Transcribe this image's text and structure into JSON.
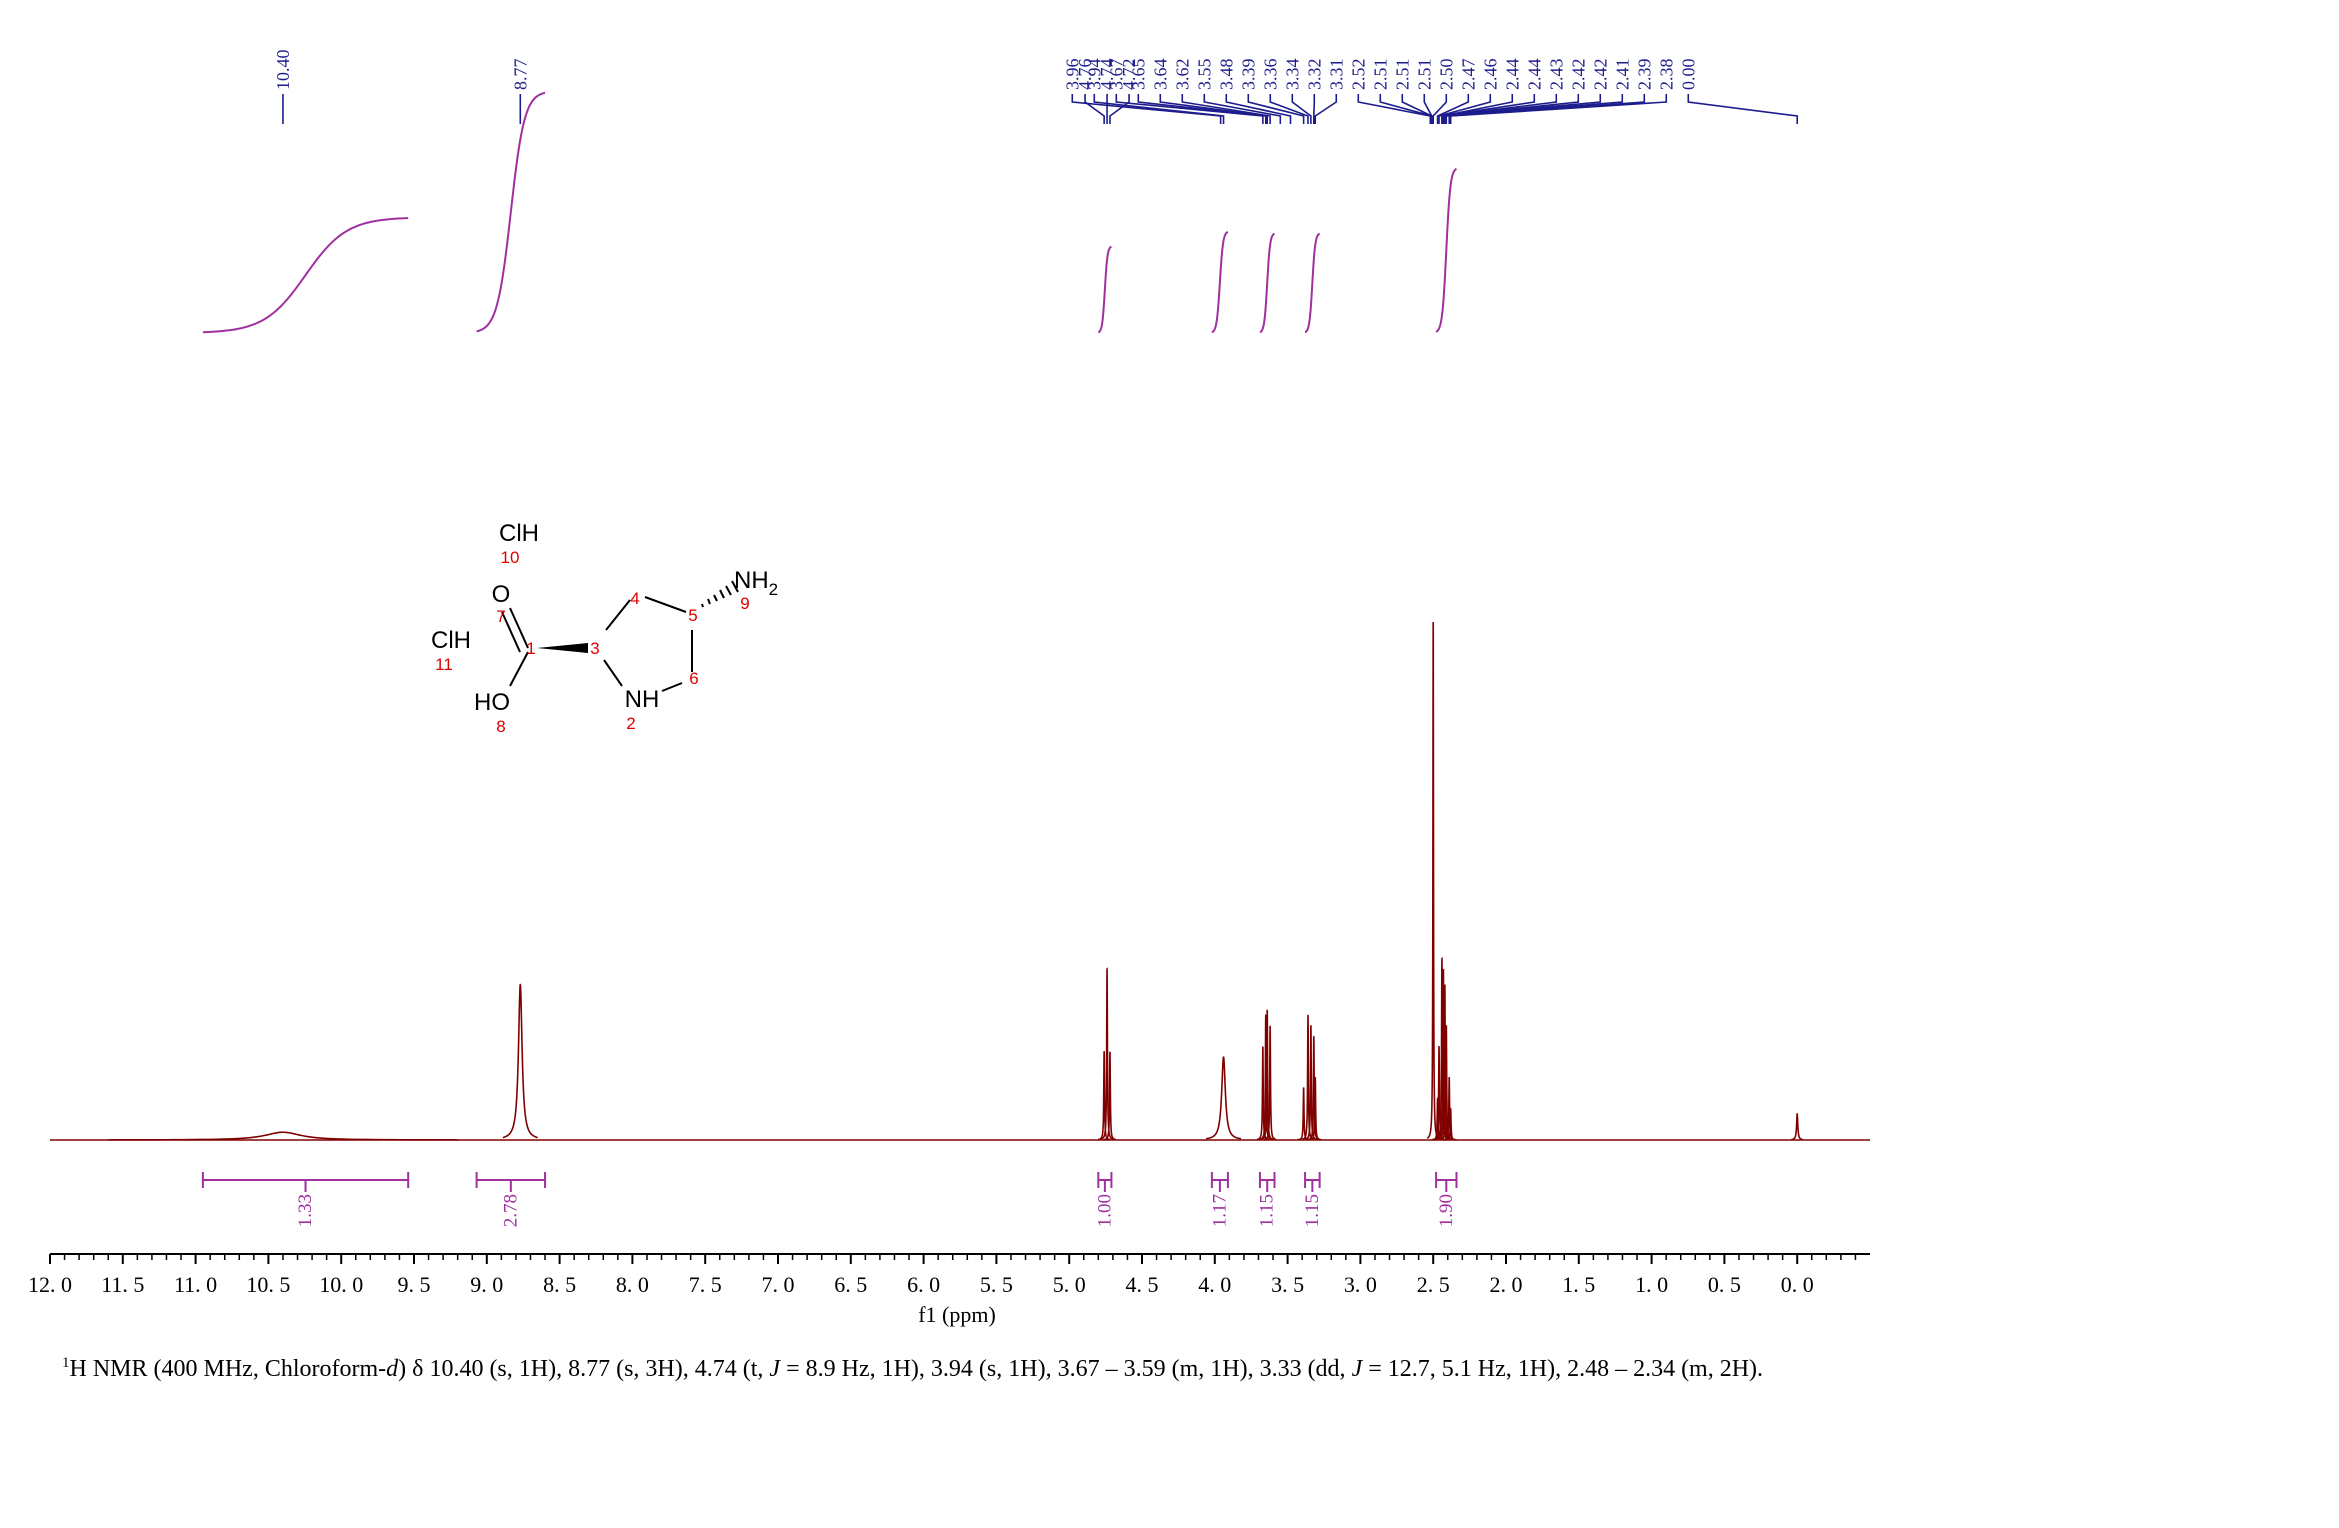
{
  "chart_data": {
    "type": "nmr",
    "x_label": "f1 (ppm)",
    "xlim": [
      12,
      -0.5
    ],
    "xticks": [
      {
        "value": 12,
        "label": "12. 0"
      },
      {
        "value": 11.5,
        "label": "11. 5"
      },
      {
        "value": 11,
        "label": "11. 0"
      },
      {
        "value": 10.5,
        "label": "10. 5"
      },
      {
        "value": 10,
        "label": "10. 0"
      },
      {
        "value": 9.5,
        "label": "9. 5"
      },
      {
        "value": 9,
        "label": "9. 0"
      },
      {
        "value": 8.5,
        "label": "8. 5"
      },
      {
        "value": 8,
        "label": "8. 0"
      },
      {
        "value": 7.5,
        "label": "7. 5"
      },
      {
        "value": 7,
        "label": "7. 0"
      },
      {
        "value": 6.5,
        "label": "6. 5"
      },
      {
        "value": 6,
        "label": "6. 0"
      },
      {
        "value": 5.5,
        "label": "5. 5"
      },
      {
        "value": 5,
        "label": "5. 0"
      },
      {
        "value": 4.5,
        "label": "4. 5"
      },
      {
        "value": 4,
        "label": "4. 0"
      },
      {
        "value": 3.5,
        "label": "3. 5"
      },
      {
        "value": 3,
        "label": "3. 0"
      },
      {
        "value": 2.5,
        "label": "2. 5"
      },
      {
        "value": 2,
        "label": "2. 0"
      },
      {
        "value": 1.5,
        "label": "1. 5"
      },
      {
        "value": 1,
        "label": "1. 0"
      },
      {
        "value": 0.5,
        "label": "0. 5"
      },
      {
        "value": 0,
        "label": "0. 0"
      }
    ],
    "minor_divisions": 5,
    "ylim": [
      0,
      100
    ],
    "color": "#800000",
    "integral_color": "#a030a0",
    "label_color": "#1c1c8c",
    "peaks": [
      {
        "ppm": 10.4,
        "height": 1.5,
        "width": 0.3
      },
      {
        "ppm": 8.77,
        "height": 30,
        "width": 0.03
      },
      {
        "ppm": 4.76,
        "height": 17,
        "width": 0.006
      },
      {
        "ppm": 4.74,
        "height": 33,
        "width": 0.006
      },
      {
        "ppm": 4.72,
        "height": 17,
        "width": 0.006
      },
      {
        "ppm": 3.94,
        "height": 16,
        "width": 0.03
      },
      {
        "ppm": 3.67,
        "height": 18,
        "width": 0.006
      },
      {
        "ppm": 3.65,
        "height": 24,
        "width": 0.006
      },
      {
        "ppm": 3.64,
        "height": 25,
        "width": 0.006
      },
      {
        "ppm": 3.62,
        "height": 22,
        "width": 0.006
      },
      {
        "ppm": 3.39,
        "height": 10,
        "width": 0.006
      },
      {
        "ppm": 3.36,
        "height": 24,
        "width": 0.006
      },
      {
        "ppm": 3.34,
        "height": 22,
        "width": 0.006
      },
      {
        "ppm": 3.32,
        "height": 20,
        "width": 0.006
      },
      {
        "ppm": 3.31,
        "height": 12,
        "width": 0.006
      },
      {
        "ppm": 2.5,
        "height": 100,
        "width": 0.004
      },
      {
        "ppm": 2.47,
        "height": 8,
        "width": 0.006
      },
      {
        "ppm": 2.46,
        "height": 18,
        "width": 0.006
      },
      {
        "ppm": 2.44,
        "height": 35,
        "width": 0.006
      },
      {
        "ppm": 2.43,
        "height": 33,
        "width": 0.006
      },
      {
        "ppm": 2.42,
        "height": 30,
        "width": 0.006
      },
      {
        "ppm": 2.41,
        "height": 22,
        "width": 0.006
      },
      {
        "ppm": 2.39,
        "height": 12,
        "width": 0.006
      },
      {
        "ppm": 2.38,
        "height": 6,
        "width": 0.006
      },
      {
        "ppm": 0.0,
        "height": 5,
        "width": 0.01
      }
    ],
    "peak_labels": [
      {
        "value": 10.4,
        "label": "10.40"
      },
      {
        "value": 8.77,
        "label": "8.77"
      },
      {
        "value": 4.76,
        "label": "4.76"
      },
      {
        "value": 4.74,
        "label": "4.74"
      },
      {
        "value": 4.72,
        "label": "4.72"
      },
      {
        "value": 3.96,
        "label": "3.96"
      },
      {
        "value": 3.94,
        "label": "3.94"
      },
      {
        "value": 3.67,
        "label": "3.67"
      },
      {
        "value": 3.65,
        "label": "3.65"
      },
      {
        "value": 3.64,
        "label": "3.64"
      },
      {
        "value": 3.62,
        "label": "3.62"
      },
      {
        "value": 3.55,
        "label": "3.55"
      },
      {
        "value": 3.48,
        "label": "3.48"
      },
      {
        "value": 3.39,
        "label": "3.39"
      },
      {
        "value": 3.36,
        "label": "3.36"
      },
      {
        "value": 3.34,
        "label": "3.34"
      },
      {
        "value": 3.32,
        "label": "3.32"
      },
      {
        "value": 3.31,
        "label": "3.31"
      },
      {
        "value": 2.52,
        "label": "2.52"
      },
      {
        "value": 2.51,
        "label": "2.51"
      },
      {
        "value": 2.51,
        "label": "2.51"
      },
      {
        "value": 2.51,
        "label": "2.51"
      },
      {
        "value": 2.5,
        "label": "2.50"
      },
      {
        "value": 2.47,
        "label": "2.47"
      },
      {
        "value": 2.46,
        "label": "2.46"
      },
      {
        "value": 2.44,
        "label": "2.44"
      },
      {
        "value": 2.44,
        "label": "2.44"
      },
      {
        "value": 2.43,
        "label": "2.43"
      },
      {
        "value": 2.42,
        "label": "2.42"
      },
      {
        "value": 2.42,
        "label": "2.42"
      },
      {
        "value": 2.41,
        "label": "2.41"
      },
      {
        "value": 2.39,
        "label": "2.39"
      },
      {
        "value": 2.38,
        "label": "2.38"
      },
      {
        "value": 0.0,
        "label": "0.00"
      }
    ],
    "integrals": [
      {
        "from": 10.95,
        "to": 9.54,
        "value": 1.33,
        "label": "1.33"
      },
      {
        "from": 9.07,
        "to": 8.6,
        "value": 2.78,
        "label": "2.78"
      },
      {
        "from": 4.8,
        "to": 4.71,
        "value": 1.0,
        "label": "1.00"
      },
      {
        "from": 4.02,
        "to": 3.91,
        "value": 1.17,
        "label": "1.17"
      },
      {
        "from": 3.69,
        "to": 3.59,
        "value": 1.15,
        "label": "1.15"
      },
      {
        "from": 3.38,
        "to": 3.28,
        "value": 1.15,
        "label": "1.15"
      },
      {
        "from": 2.48,
        "to": 2.34,
        "value": 1.9,
        "label": "1.90"
      }
    ]
  },
  "structure": {
    "atoms": [
      {
        "label": "ClH",
        "number": "10"
      },
      {
        "label": "O",
        "number": "7"
      },
      {
        "label": "ClH",
        "number": "11"
      },
      {
        "label": "HO",
        "number": "8"
      },
      {
        "label": "NH",
        "number": "2"
      },
      {
        "label": "NH",
        "subscript": "2",
        "number": "9"
      }
    ],
    "carbons": [
      "1",
      "3",
      "4",
      "5",
      "6"
    ]
  },
  "caption": [
    "1",
    "H NMR (400 MHz, Chloroform-",
    "d",
    ") δ 10.40 (s, 1H), 8.77 (s, 3H), 4.74 (t, ",
    "J",
    " = 8.9 Hz, 1H), 3.94 (s, 1H), 3.67 – 3.59 (m, 1H), 3.33 (dd, ",
    "J",
    " = 12.7, 5.1 Hz, 1H), 2.48 – 2.34 (m, 2H)."
  ]
}
